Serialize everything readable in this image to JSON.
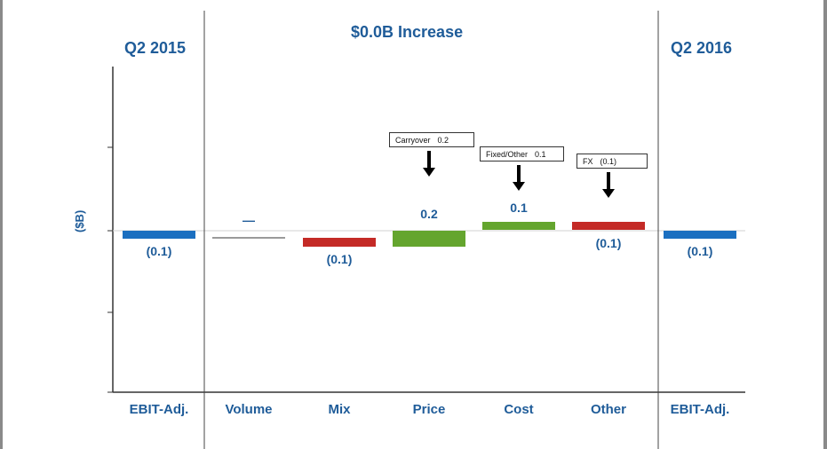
{
  "chart_data": {
    "type": "bar",
    "title": "$0.0B Increase",
    "ylabel": "($B)",
    "grid": false,
    "period_start": "Q2 2015",
    "period_end": "Q2 2016",
    "categories": [
      "EBIT-Adj.",
      "Volume",
      "Mix",
      "Price",
      "Cost",
      "Other",
      "EBIT-Adj."
    ],
    "values": [
      -0.1,
      0.0,
      -0.1,
      0.2,
      0.1,
      -0.1,
      -0.1
    ],
    "value_labels": [
      "(0.1)",
      "—",
      "(0.1)",
      "0.2",
      "0.1",
      "(0.1)",
      "(0.1)"
    ],
    "colors": [
      "#1b6fc0",
      "#9a9a9a",
      "#c42a26",
      "#64a52e",
      "#64a52e",
      "#c42a26",
      "#1b6fc0"
    ],
    "callouts": [
      {
        "category": "Price",
        "label": "Carryover",
        "value": "0.2"
      },
      {
        "category": "Cost",
        "label": "Fixed/Other",
        "value": "0.1"
      },
      {
        "category": "Other",
        "label": "FX",
        "value": "(0.1)"
      }
    ]
  }
}
